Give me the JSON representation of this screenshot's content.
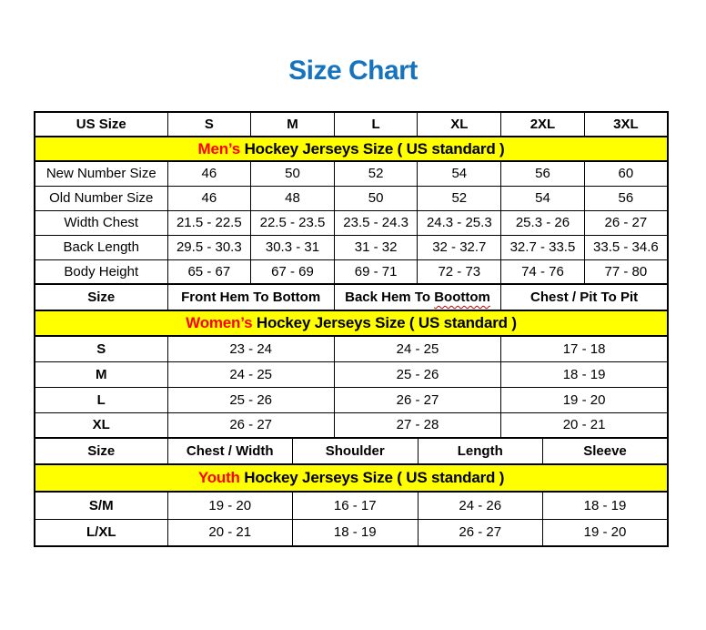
{
  "page": {
    "title": "Size Chart"
  },
  "colors": {
    "title_blue": "#1673be",
    "band_yellow": "#ffff00",
    "accent_red": "#ff0000",
    "border_black": "#000000",
    "squiggle_red": "#c00000"
  },
  "men": {
    "band": {
      "highlight": "Men’s",
      "rest": " Hockey Jerseys Size ( US standard )"
    },
    "columns": [
      "US Size",
      "S",
      "M",
      "L",
      "XL",
      "2XL",
      "3XL"
    ],
    "rows": [
      {
        "label": "New Number Size",
        "values": [
          "46",
          "50",
          "52",
          "54",
          "56",
          "60"
        ]
      },
      {
        "label": "Old Number Size",
        "values": [
          "46",
          "48",
          "50",
          "52",
          "54",
          "56"
        ]
      },
      {
        "label": "Width Chest",
        "values": [
          "21.5 - 22.5",
          "22.5 - 23.5",
          "23.5 - 24.3",
          "24.3 - 25.3",
          "25.3 - 26",
          "26 - 27"
        ]
      },
      {
        "label": "Back Length",
        "values": [
          "29.5 - 30.3",
          "30.3 - 31",
          "31 - 32",
          "32 - 32.7",
          "32.7 - 33.5",
          "33.5 - 34.6"
        ]
      },
      {
        "label": "Body Height",
        "values": [
          "65 - 67",
          "67 - 69",
          "69 - 71",
          "72 - 73",
          "74 - 76",
          "77 - 80"
        ]
      }
    ]
  },
  "women": {
    "band": {
      "highlight": "Women’s",
      "rest": " Hockey Jerseys Size ( US standard )"
    },
    "columns": [
      "Size",
      "Front Hem To Bottom",
      "Back Hem To Boottom",
      "Chest / Pit To Pit"
    ],
    "misspelled_word": "Boottom",
    "rows": [
      {
        "label": "S",
        "values": [
          "23 - 24",
          "24 - 25",
          "17 - 18"
        ]
      },
      {
        "label": "M",
        "values": [
          "24 - 25",
          "25 - 26",
          "18 - 19"
        ]
      },
      {
        "label": "L",
        "values": [
          "25 - 26",
          "26 - 27",
          "19 - 20"
        ]
      },
      {
        "label": "XL",
        "values": [
          "26 - 27",
          "27 - 28",
          "20 - 21"
        ]
      }
    ]
  },
  "youth": {
    "band": {
      "highlight": "Youth",
      "rest": " Hockey Jerseys Size ( US standard )"
    },
    "columns": [
      "Size",
      "Chest / Width",
      "Shoulder",
      "Length",
      "Sleeve"
    ],
    "rows": [
      {
        "label": "S/M",
        "values": [
          "19 - 20",
          "16 - 17",
          "24 - 26",
          "18 - 19"
        ]
      },
      {
        "label": "L/XL",
        "values": [
          "20 - 21",
          "18 - 19",
          "26 - 27",
          "19 - 20"
        ]
      }
    ]
  }
}
